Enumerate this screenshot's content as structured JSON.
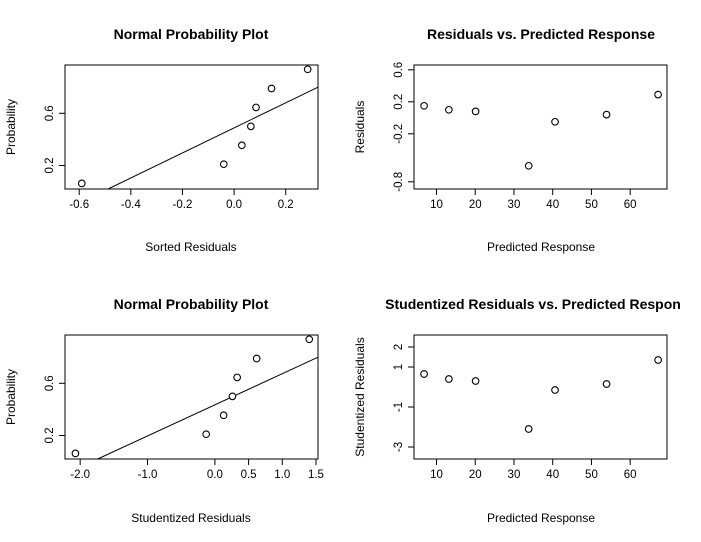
{
  "chart_data": [
    {
      "id": "p1",
      "type": "scatter",
      "title": "Normal Probability Plot",
      "xlabel": "Sorted Residuals",
      "ylabel": "Probability",
      "xlim": [
        -0.655,
        0.325
      ],
      "ylim": [
        0.02,
        0.97
      ],
      "xticks": [
        {
          "v": -0.6,
          "t": "-0.6"
        },
        {
          "v": -0.4,
          "t": "-0.4"
        },
        {
          "v": -0.2,
          "t": "-0.2"
        },
        {
          "v": 0.0,
          "t": "0.0"
        },
        {
          "v": 0.2,
          "t": "0.2"
        }
      ],
      "yticks": [
        {
          "v": 0.2,
          "t": "0.2"
        },
        {
          "v": 0.6,
          "t": "0.6"
        }
      ],
      "points": [
        {
          "x": -0.59,
          "y": 0.063
        },
        {
          "x": -0.04,
          "y": 0.21
        },
        {
          "x": 0.03,
          "y": 0.355
        },
        {
          "x": 0.065,
          "y": 0.5
        },
        {
          "x": 0.085,
          "y": 0.645
        },
        {
          "x": 0.145,
          "y": 0.79
        },
        {
          "x": 0.285,
          "y": 0.937
        }
      ],
      "refline": {
        "x1": -0.488,
        "y1": 0.02,
        "x2": 0.325,
        "y2": 0.8
      }
    },
    {
      "id": "p2",
      "type": "scatter",
      "title": "Residuals vs. Predicted Response",
      "xlabel": "Predicted Response",
      "ylabel": "Residuals",
      "xlim": [
        4.2,
        69.5
      ],
      "ylim": [
        -0.89,
        0.66
      ],
      "xticks": [
        {
          "v": 10,
          "t": "10"
        },
        {
          "v": 20,
          "t": "20"
        },
        {
          "v": 30,
          "t": "30"
        },
        {
          "v": 40,
          "t": "40"
        },
        {
          "v": 50,
          "t": "50"
        },
        {
          "v": 60,
          "t": "60"
        }
      ],
      "yticks": [
        {
          "v": 0.6,
          "t": "0.6"
        },
        {
          "v": 0.2,
          "t": "0.2"
        },
        {
          "v": -0.2,
          "t": "-0.2"
        },
        {
          "v": -0.8,
          "t": "-0.8"
        }
      ],
      "points": [
        {
          "x": 6.8,
          "y": 0.15
        },
        {
          "x": 13.2,
          "y": 0.1
        },
        {
          "x": 20.1,
          "y": 0.08
        },
        {
          "x": 33.8,
          "y": -0.6
        },
        {
          "x": 40.6,
          "y": -0.05
        },
        {
          "x": 53.9,
          "y": 0.04
        },
        {
          "x": 67.2,
          "y": 0.29
        }
      ]
    },
    {
      "id": "p3",
      "type": "scatter",
      "title": "Normal Probability Plot",
      "xlabel": "Studentized Residuals",
      "ylabel": "Probability",
      "xlim": [
        -2.225,
        1.53
      ],
      "ylim": [
        0.02,
        0.97
      ],
      "xticks": [
        {
          "v": -2.0,
          "t": "-2.0"
        },
        {
          "v": -1.0,
          "t": "-1.0"
        },
        {
          "v": 0.0,
          "t": "0.0"
        },
        {
          "v": 0.5,
          "t": "0.5"
        },
        {
          "v": 1.0,
          "t": "1.0"
        },
        {
          "v": 1.5,
          "t": "1.5"
        }
      ],
      "yticks": [
        {
          "v": 0.2,
          "t": "0.2"
        },
        {
          "v": 0.6,
          "t": "0.6"
        }
      ],
      "points": [
        {
          "x": -2.07,
          "y": 0.063
        },
        {
          "x": -0.13,
          "y": 0.21
        },
        {
          "x": 0.13,
          "y": 0.355
        },
        {
          "x": 0.26,
          "y": 0.5
        },
        {
          "x": 0.33,
          "y": 0.645
        },
        {
          "x": 0.62,
          "y": 0.79
        },
        {
          "x": 1.4,
          "y": 0.937
        }
      ],
      "refline": {
        "x1": -1.74,
        "y1": 0.02,
        "x2": 1.53,
        "y2": 0.8
      }
    },
    {
      "id": "p4",
      "type": "scatter",
      "title": "Studentized Residuals vs. Predicted Respon",
      "xlabel": "Predicted Response",
      "ylabel": "Studentized Residuals",
      "xlim": [
        4.2,
        69.5
      ],
      "ylim": [
        -3.6,
        2.6
      ],
      "xticks": [
        {
          "v": 10,
          "t": "10"
        },
        {
          "v": 20,
          "t": "20"
        },
        {
          "v": 30,
          "t": "30"
        },
        {
          "v": 40,
          "t": "40"
        },
        {
          "v": 50,
          "t": "50"
        },
        {
          "v": 60,
          "t": "60"
        }
      ],
      "yticks": [
        {
          "v": 2,
          "t": "2"
        },
        {
          "v": 1,
          "t": "1"
        },
        {
          "v": -1,
          "t": "-1"
        },
        {
          "v": -3,
          "t": "-3"
        }
      ],
      "points": [
        {
          "x": 6.8,
          "y": 0.65
        },
        {
          "x": 13.2,
          "y": 0.4
        },
        {
          "x": 20.1,
          "y": 0.3
        },
        {
          "x": 33.8,
          "y": -2.1
        },
        {
          "x": 40.6,
          "y": -0.15
        },
        {
          "x": 53.9,
          "y": 0.15
        },
        {
          "x": 67.2,
          "y": 1.35
        }
      ]
    }
  ]
}
